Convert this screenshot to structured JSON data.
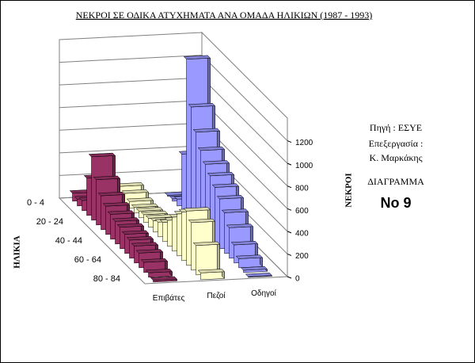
{
  "chart_data": {
    "type": "bar3d",
    "title": "ΝΕΚΡΟΙ ΣΕ ΟΔΙΚΑ ΑΤΥΧΗΜΑΤΑ ΑΝΑ ΟΜΑΔΑ ΗΛΙΚΙΩΝ (1987 - 1993)",
    "x_label": "ΗΛΙΚΙΑ",
    "y_label": "ΝΕΚΡΟΙ",
    "categories": [
      "0 - 4",
      null,
      null,
      null,
      "20 - 24",
      null,
      null,
      null,
      "40 - 44",
      null,
      null,
      null,
      "60 - 64",
      null,
      null,
      null,
      "80 - 84",
      null
    ],
    "series": [
      {
        "name": "Επιβάτες",
        "color": "#993366",
        "values": [
          70,
          60,
          90,
          330,
          560,
          400,
          300,
          250,
          220,
          200,
          190,
          170,
          160,
          150,
          130,
          90,
          40,
          15
        ]
      },
      {
        "name": "Πεζοί",
        "color": "#ffffcc",
        "values": [
          110,
          90,
          60,
          50,
          60,
          70,
          80,
          100,
          130,
          170,
          230,
          300,
          370,
          430,
          480,
          420,
          260,
          60
        ]
      },
      {
        "name": "Οδηγοί",
        "color": "#9999ff",
        "values": [
          10,
          20,
          60,
          500,
          1380,
          1000,
          820,
          700,
          620,
          560,
          500,
          440,
          360,
          270,
          160,
          80,
          20,
          5
        ]
      }
    ],
    "ylim": [
      0,
      1400
    ],
    "yticks": [
      0,
      200,
      400,
      600,
      800,
      1000,
      1200
    ],
    "grid": true,
    "annotations": [
      "Πηγή : ΕΣΥΕ",
      "Επεξεργασία :",
      "Κ. Μαρκάκης",
      "ΔΙΑΓΡΑΜΜΑ",
      "No 9"
    ]
  }
}
